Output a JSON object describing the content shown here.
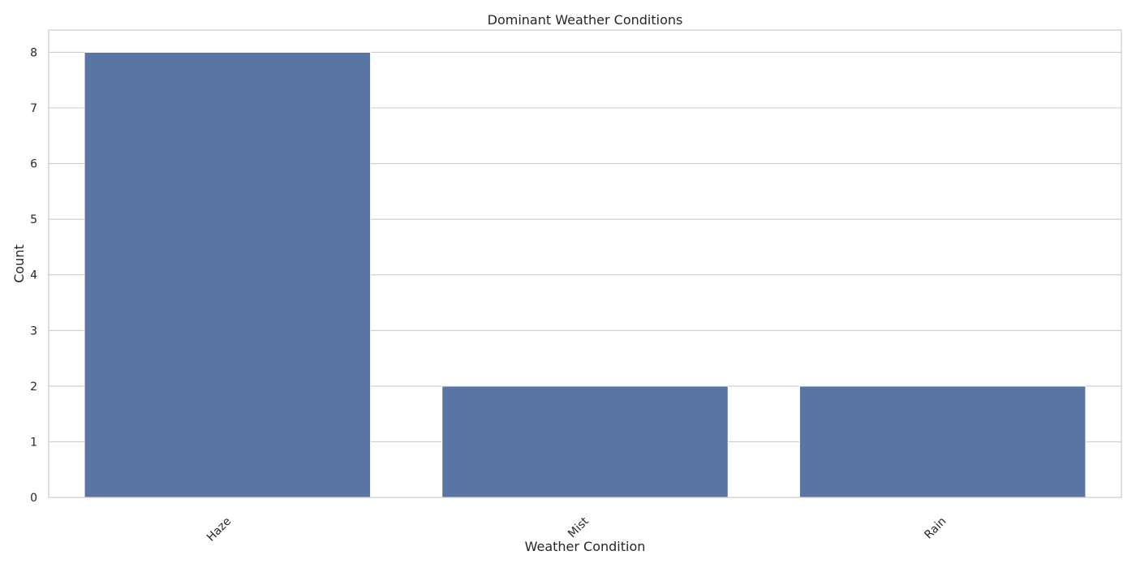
{
  "chart_data": {
    "type": "bar",
    "title": "Dominant Weather Conditions",
    "xlabel": "Weather Condition",
    "ylabel": "Count",
    "categories": [
      "Haze",
      "Mist",
      "Rain"
    ],
    "values": [
      8,
      2,
      2
    ],
    "ylim": [
      0,
      8.4
    ],
    "yticks": [
      "0",
      "1",
      "2",
      "3",
      "4",
      "5",
      "6",
      "7",
      "8"
    ],
    "grid": "horizontal",
    "xtick_rotation": "45 degrees",
    "colors": {
      "bar": "#5975a4",
      "grid": "#cccccc",
      "text": "#262626"
    }
  }
}
